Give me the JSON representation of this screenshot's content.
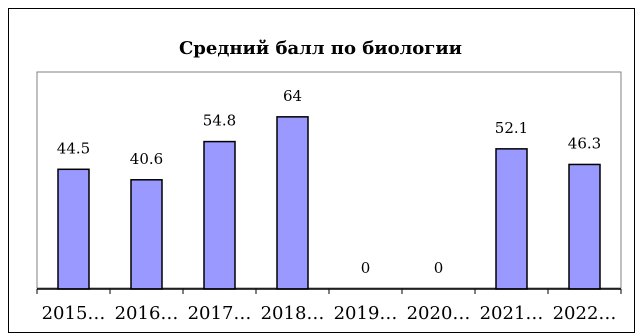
{
  "chart_data": {
    "type": "bar",
    "title": "Средний балл по биологии",
    "categories": [
      "2015…",
      "2016…",
      "2017…",
      "2018…",
      "2019…",
      "2020…",
      "2021…",
      "2022…"
    ],
    "values": [
      44.5,
      40.6,
      54.8,
      64,
      0,
      0,
      52.1,
      46.3
    ],
    "data_labels": [
      "44.5",
      "40.6",
      "54.8",
      "64",
      "0",
      "0",
      "52.1",
      "46.3"
    ],
    "xlabel": "",
    "ylabel": "",
    "ylim": [
      0,
      70
    ],
    "grid": false,
    "legend": "none",
    "colors": {
      "bar_fill": "#9999ff",
      "bar_stroke": "#000000",
      "plot_border": "#808080",
      "text": "#000000"
    }
  }
}
